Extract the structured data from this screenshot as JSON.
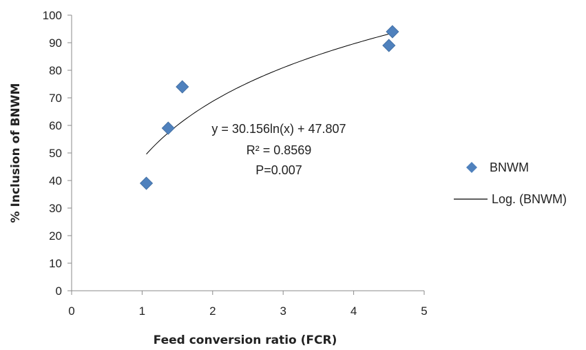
{
  "chart_data": {
    "type": "scatter",
    "xlabel": "Feed conversion ratio (FCR)",
    "ylabel": "% Inclusion of BNWM",
    "xlim": [
      0,
      5
    ],
    "ylim": [
      0,
      100
    ],
    "xticks": [
      0,
      1,
      2,
      3,
      4,
      5
    ],
    "yticks": [
      0,
      10,
      20,
      30,
      40,
      50,
      60,
      70,
      80,
      90,
      100
    ],
    "grid": false,
    "legend_position": "right",
    "series": [
      {
        "name": "BNWM",
        "marker": "diamond",
        "color": "#4F81BD",
        "points": [
          {
            "x": 1.06,
            "y": 39
          },
          {
            "x": 1.37,
            "y": 59
          },
          {
            "x": 1.57,
            "y": 74
          },
          {
            "x": 4.5,
            "y": 89
          },
          {
            "x": 4.55,
            "y": 94
          }
        ]
      }
    ],
    "trendline": {
      "name": "Log. (BNWM)",
      "type": "logarithmic",
      "coefficient": 30.156,
      "intercept": 47.807,
      "x_range": [
        1.06,
        4.55
      ],
      "color": "#000000"
    },
    "annotations": [
      "y = 30.156ln(x) + 47.807",
      "R² = 0.8569",
      "P=0.007"
    ]
  }
}
